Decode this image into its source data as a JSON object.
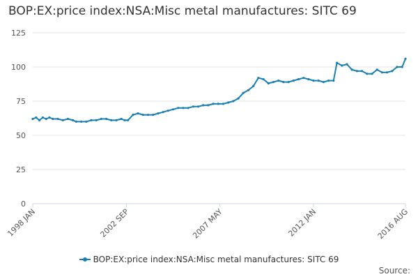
{
  "credits": "Source:",
  "chart_data": {
    "type": "line",
    "title": "BOP:EX:price index:NSA:Misc metal manufactures: SITC 69",
    "xlabel": "",
    "ylabel": "",
    "ylim": [
      0,
      125
    ],
    "y_ticks": [
      0,
      25,
      50,
      75,
      100,
      125
    ],
    "x_ticks": [
      "1998 JAN",
      "2002 SEP",
      "2007 MAY",
      "2012 JAN",
      "2016 AUG"
    ],
    "x_range": [
      "1998-01",
      "2016-08"
    ],
    "grid": "horizontal",
    "legend_position": "bottom",
    "color": "#1a7fb5",
    "series": [
      {
        "name": "BOP:EX:price index:NSA:Misc metal manufactures: SITC 69",
        "points": [
          [
            "1998-01",
            62
          ],
          [
            "1998-03",
            63
          ],
          [
            "1998-05",
            61
          ],
          [
            "1998-07",
            63
          ],
          [
            "1998-09",
            62
          ],
          [
            "1998-11",
            63
          ],
          [
            "1999-01",
            62
          ],
          [
            "1999-04",
            62
          ],
          [
            "1999-07",
            61
          ],
          [
            "1999-10",
            62
          ],
          [
            "2000-01",
            61
          ],
          [
            "2000-03",
            60
          ],
          [
            "2000-06",
            60
          ],
          [
            "2000-09",
            60
          ],
          [
            "2000-12",
            61
          ],
          [
            "2001-03",
            61
          ],
          [
            "2001-06",
            62
          ],
          [
            "2001-09",
            62
          ],
          [
            "2001-12",
            61
          ],
          [
            "2002-03",
            61
          ],
          [
            "2002-06",
            62
          ],
          [
            "2002-08",
            61
          ],
          [
            "2002-10",
            61
          ],
          [
            "2003-01",
            65
          ],
          [
            "2003-04",
            66
          ],
          [
            "2003-07",
            65
          ],
          [
            "2003-10",
            65
          ],
          [
            "2004-01",
            65
          ],
          [
            "2004-04",
            66
          ],
          [
            "2004-07",
            67
          ],
          [
            "2004-10",
            68
          ],
          [
            "2005-01",
            69
          ],
          [
            "2005-04",
            70
          ],
          [
            "2005-07",
            70
          ],
          [
            "2005-10",
            70
          ],
          [
            "2006-01",
            71
          ],
          [
            "2006-04",
            71
          ],
          [
            "2006-07",
            72
          ],
          [
            "2006-10",
            72
          ],
          [
            "2007-01",
            73
          ],
          [
            "2007-04",
            73
          ],
          [
            "2007-07",
            73
          ],
          [
            "2007-10",
            74
          ],
          [
            "2008-01",
            75
          ],
          [
            "2008-04",
            77
          ],
          [
            "2008-07",
            81
          ],
          [
            "2008-10",
            83
          ],
          [
            "2009-01",
            86
          ],
          [
            "2009-04",
            92
          ],
          [
            "2009-07",
            91
          ],
          [
            "2009-10",
            88
          ],
          [
            "2010-01",
            89
          ],
          [
            "2010-04",
            90
          ],
          [
            "2010-07",
            89
          ],
          [
            "2010-10",
            89
          ],
          [
            "2011-01",
            90
          ],
          [
            "2011-04",
            91
          ],
          [
            "2011-07",
            92
          ],
          [
            "2011-10",
            91
          ],
          [
            "2012-01",
            90
          ],
          [
            "2012-04",
            90
          ],
          [
            "2012-07",
            89
          ],
          [
            "2012-10",
            90
          ],
          [
            "2013-01",
            90
          ],
          [
            "2013-03",
            103
          ],
          [
            "2013-06",
            101
          ],
          [
            "2013-09",
            102
          ],
          [
            "2013-12",
            98
          ],
          [
            "2014-03",
            97
          ],
          [
            "2014-06",
            97
          ],
          [
            "2014-09",
            95
          ],
          [
            "2014-12",
            95
          ],
          [
            "2015-03",
            98
          ],
          [
            "2015-06",
            96
          ],
          [
            "2015-09",
            96
          ],
          [
            "2015-12",
            97
          ],
          [
            "2016-03",
            100
          ],
          [
            "2016-06",
            100
          ],
          [
            "2016-08",
            106
          ]
        ]
      }
    ]
  }
}
